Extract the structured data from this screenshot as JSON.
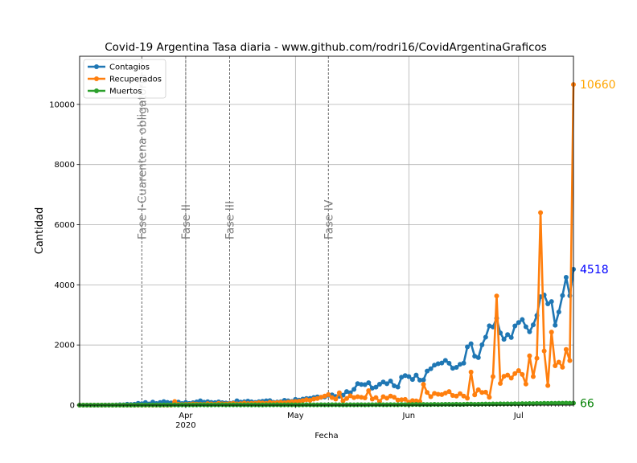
{
  "chart_data": {
    "type": "line",
    "title": "Covid-19 Argentina Tasa diaria - www.github.com/rodri16/CovidArgentinaGraficos",
    "xlabel": "Fecha",
    "ylabel": "Cantidad",
    "ylim": [
      0,
      11600
    ],
    "xlim": [
      "2020-03-03",
      "2020-07-16"
    ],
    "grid": true,
    "legend_position": "top-left",
    "yticks": [
      0,
      2000,
      4000,
      6000,
      8000,
      10000
    ],
    "xticks": [
      {
        "date": "2020-04-01",
        "label": "Apr",
        "sublabel": "2020"
      },
      {
        "date": "2020-05-01",
        "label": "May",
        "sublabel": ""
      },
      {
        "date": "2020-06-01",
        "label": "Jun",
        "sublabel": ""
      },
      {
        "date": "2020-07-01",
        "label": "Jul",
        "sublabel": ""
      }
    ],
    "phases": [
      {
        "date": "2020-03-20",
        "label": "Fase I-Cuarentena obligatoria"
      },
      {
        "date": "2020-04-01",
        "label": "Fase II"
      },
      {
        "date": "2020-04-13",
        "label": "Fase III"
      },
      {
        "date": "2020-05-10",
        "label": "Fase IV"
      }
    ],
    "start_date": "2020-03-03",
    "series": [
      {
        "name": "Contagios",
        "color": "#1f77b4",
        "values": [
          0,
          0,
          0,
          0,
          0,
          0,
          0,
          3,
          2,
          3,
          6,
          12,
          10,
          31,
          20,
          31,
          61,
          48,
          87,
          41,
          101,
          55,
          86,
          116,
          89,
          75,
          88,
          101,
          55,
          87,
          58,
          80,
          106,
          144,
          98,
          115,
          89,
          85,
          107,
          81,
          71,
          63,
          77,
          144,
          101,
          112,
          133,
          111,
          90,
          113,
          127,
          144,
          150,
          92,
          102,
          112,
          160,
          143,
          123,
          189,
          166,
          202,
          221,
          223,
          253,
          274,
          262,
          270,
          327,
          342,
          286,
          293,
          330,
          452,
          412,
          524,
          715,
          689,
          681,
          746,
          564,
          599,
          696,
          768,
          711,
          802,
          640,
          600,
          929,
          983,
          949,
          852,
          1000,
          832,
          840,
          1134,
          1210,
          1329,
          1376,
          1400,
          1486,
          1393,
          1226,
          1256,
          1358,
          1398,
          1938,
          2040,
          1628,
          1581,
          2005,
          2260,
          2635,
          2599,
          2886,
          2401,
          2189,
          2346,
          2250,
          2632,
          2745,
          2845,
          2606,
          2439,
          2670,
          2979,
          3604,
          3663,
          3367,
          3443,
          2657,
          3096,
          3645,
          4250,
          3638,
          4518
        ],
        "end_label": "4518"
      },
      {
        "name": "Recuperados",
        "color": "#ff7f0e",
        "values": [
          0,
          0,
          0,
          0,
          0,
          0,
          0,
          0,
          0,
          0,
          0,
          0,
          0,
          0,
          0,
          0,
          0,
          0,
          0,
          0,
          0,
          0,
          0,
          0,
          0,
          0,
          120,
          30,
          20,
          25,
          30,
          40,
          35,
          30,
          25,
          50,
          40,
          30,
          60,
          45,
          40,
          50,
          60,
          45,
          50,
          70,
          55,
          60,
          65,
          80,
          70,
          60,
          90,
          75,
          85,
          95,
          80,
          100,
          110,
          120,
          130,
          150,
          180,
          160,
          200,
          220,
          260,
          300,
          350,
          250,
          200,
          410,
          140,
          220,
          310,
          250,
          280,
          260,
          240,
          480,
          200,
          250,
          120,
          280,
          230,
          300,
          260,
          170,
          180,
          190,
          100,
          150,
          140,
          120,
          690,
          420,
          280,
          390,
          360,
          350,
          400,
          450,
          320,
          300,
          380,
          300,
          230,
          1100,
          340,
          510,
          420,
          430,
          260,
          950,
          3630,
          720,
          960,
          1000,
          900,
          1050,
          1150,
          1020,
          700,
          1640,
          950,
          1560,
          6400,
          1800,
          650,
          2430,
          1310,
          1430,
          1260,
          1850,
          1480,
          10660
        ],
        "end_label": "10660"
      },
      {
        "name": "Muertos",
        "color": "#2ca02c",
        "values": [
          0,
          0,
          0,
          0,
          0,
          1,
          1,
          0,
          0,
          1,
          0,
          0,
          1,
          1,
          1,
          1,
          2,
          1,
          3,
          2,
          3,
          4,
          1,
          5,
          4,
          7,
          5,
          4,
          6,
          8,
          5,
          7,
          8,
          9,
          10,
          6,
          8,
          10,
          9,
          12,
          8,
          9,
          10,
          11,
          8,
          9,
          10,
          8,
          9,
          7,
          8,
          10,
          9,
          11,
          12,
          8,
          9,
          10,
          11,
          9,
          8,
          9,
          12,
          10,
          11,
          9,
          13,
          10,
          11,
          12,
          14,
          9,
          10,
          11,
          12,
          10,
          13,
          12,
          11,
          14,
          15,
          12,
          16,
          14,
          13,
          18,
          15,
          14,
          20,
          17,
          16,
          19,
          22,
          18,
          24,
          20,
          21,
          25,
          19,
          23,
          28,
          26,
          24,
          30,
          22,
          25,
          32,
          35,
          28,
          31,
          33,
          38,
          35,
          40,
          36,
          42,
          39,
          44,
          41,
          47,
          45,
          50,
          48,
          53,
          49,
          58,
          55,
          60,
          56,
          61,
          59,
          64,
          62,
          66,
          63,
          66
        ],
        "end_label": "66"
      }
    ]
  }
}
